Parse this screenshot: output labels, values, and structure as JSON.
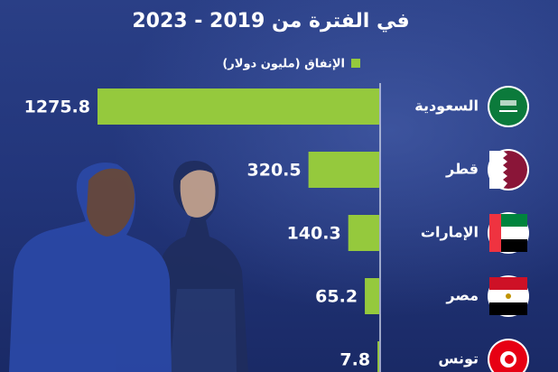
{
  "chart_data": {
    "type": "bar",
    "orientation": "horizontal",
    "title": "في الفترة من 2019 - 2023",
    "legend_label": "الإنفاق (مليون دولار)",
    "categories": [
      "السعودية",
      "قطر",
      "الإمارات",
      "مصر",
      "تونس"
    ],
    "values": [
      1275.8,
      320.5,
      140.3,
      65.2,
      7.8
    ],
    "color": "#95c93d"
  }
}
